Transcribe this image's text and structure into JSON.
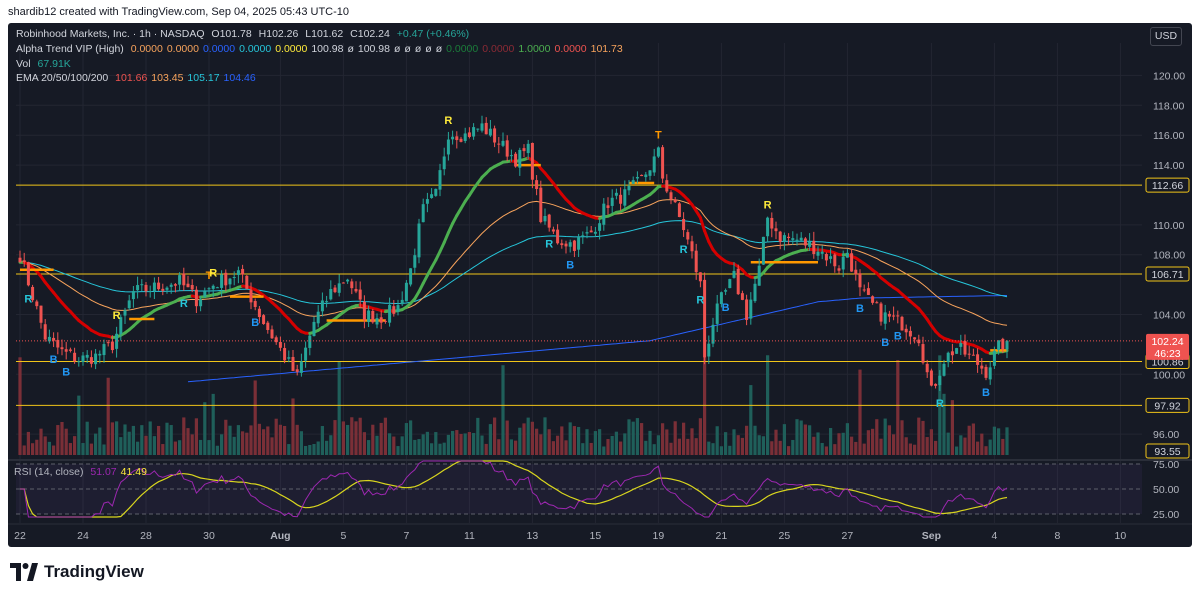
{
  "header": {
    "text": "shardib12 created with TradingView.com, Sep 04, 2025 05:43 UTC-10"
  },
  "legend": {
    "symbol": "Robinhood Markets, Inc. · 1h · NASDAQ",
    "ohlc": [
      "O101.78",
      "H102.26",
      "L101.62",
      "C102.24",
      "+0.47 (+0.46%)"
    ],
    "alpha_trend": {
      "label": "Alpha Trend VIP (High)",
      "values": [
        {
          "text": "0.0000",
          "color": "#f7a35c"
        },
        {
          "text": "0.0000",
          "color": "#f7a35c"
        },
        {
          "text": "0.0000",
          "color": "#2962ff"
        },
        {
          "text": "0.0000",
          "color": "#26c6da"
        },
        {
          "text": "0.0000",
          "color": "#ffeb3b"
        },
        {
          "text": "100.98",
          "color": "#d1d4dc"
        },
        {
          "text": "ø",
          "color": "#d1d4dc"
        },
        {
          "text": "100.98",
          "color": "#d1d4dc"
        },
        {
          "text": "ø",
          "color": "#d1d4dc"
        },
        {
          "text": "ø",
          "color": "#d1d4dc"
        },
        {
          "text": "ø",
          "color": "#d1d4dc"
        },
        {
          "text": "ø",
          "color": "#d1d4dc"
        },
        {
          "text": "ø",
          "color": "#d1d4dc"
        },
        {
          "text": "0.0000",
          "color": "#1b7d3a"
        },
        {
          "text": "0.0000",
          "color": "#8b2a35"
        },
        {
          "text": "1.0000",
          "color": "#4caf50"
        },
        {
          "text": "0.0000",
          "color": "#ef5350"
        },
        {
          "text": "101.73",
          "color": "#f7a35c"
        }
      ]
    },
    "vol": {
      "label": "Vol",
      "value": "67.91K"
    },
    "ema": {
      "label": "EMA 20/50/100/200",
      "values": [
        {
          "text": "101.66",
          "color": "#ef5350"
        },
        {
          "text": "103.45",
          "color": "#f7a35c"
        },
        {
          "text": "105.17",
          "color": "#26c6da"
        },
        {
          "text": "104.46",
          "color": "#2962ff"
        }
      ]
    },
    "currency": "USD"
  },
  "rsi_legend": {
    "label": "RSI (14, close)",
    "values": [
      {
        "text": "51.07",
        "color": "#9c27b0"
      },
      {
        "text": "41.49",
        "color": "#ffeb3b"
      }
    ]
  },
  "footer": {
    "brand": "TradingView"
  },
  "chart_data": [
    {
      "type": "candlestick",
      "title": "Robinhood Markets, Inc. · 1h · NASDAQ",
      "ylim": [
        94.6,
        121.5
      ],
      "y_ticks": [
        "120.00",
        "118.00",
        "116.00",
        "114.00",
        "110.00",
        "108.00",
        "104.00",
        "100.00",
        "96.00"
      ],
      "x_ticks": [
        {
          "label": "22",
          "i": 0
        },
        {
          "label": "24",
          "i": 15
        },
        {
          "label": "28",
          "i": 30
        },
        {
          "label": "30",
          "i": 45
        },
        {
          "label": "Aug",
          "i": 62
        },
        {
          "label": "5",
          "i": 77
        },
        {
          "label": "7",
          "i": 92
        },
        {
          "label": "11",
          "i": 107
        },
        {
          "label": "13",
          "i": 122
        },
        {
          "label": "15",
          "i": 137
        },
        {
          "label": "19",
          "i": 152
        },
        {
          "label": "21",
          "i": 167
        },
        {
          "label": "25",
          "i": 182
        },
        {
          "label": "27",
          "i": 197
        },
        {
          "label": "Sep",
          "i": 217
        },
        {
          "label": "4",
          "i": 232
        },
        {
          "label": "8",
          "i": 247
        },
        {
          "label": "10",
          "i": 262
        }
      ],
      "key_points": [
        [
          0,
          108.0
        ],
        [
          6,
          102.5
        ],
        [
          10,
          101.5
        ],
        [
          14,
          101.0
        ],
        [
          18,
          101.2
        ],
        [
          22,
          102.0
        ],
        [
          27,
          105.5
        ],
        [
          32,
          105.8
        ],
        [
          38,
          106.2
        ],
        [
          42,
          105.0
        ],
        [
          46,
          106.0
        ],
        [
          52,
          106.8
        ],
        [
          58,
          103.5
        ],
        [
          63,
          101.2
        ],
        [
          66,
          99.8
        ],
        [
          70,
          103.5
        ],
        [
          74,
          105.5
        ],
        [
          78,
          106.5
        ],
        [
          82,
          104.0
        ],
        [
          86,
          103.8
        ],
        [
          90,
          104.5
        ],
        [
          93,
          107.0
        ],
        [
          96,
          111.0
        ],
        [
          99,
          112.0
        ],
        [
          102,
          116.2
        ],
        [
          106,
          116.0
        ],
        [
          110,
          116.6
        ],
        [
          114,
          115.5
        ],
        [
          118,
          114.4
        ],
        [
          121,
          115.0
        ],
        [
          124,
          110.5
        ],
        [
          128,
          109.0
        ],
        [
          132,
          108.7
        ],
        [
          136,
          109.5
        ],
        [
          140,
          111.5
        ],
        [
          144,
          112.0
        ],
        [
          148,
          113.0
        ],
        [
          152,
          114.8
        ],
        [
          153,
          113.2
        ],
        [
          155,
          111.8
        ],
        [
          158,
          109.8
        ],
        [
          160,
          108.0
        ],
        [
          162,
          106.0
        ],
        [
          163,
          101.2
        ],
        [
          165,
          103.5
        ],
        [
          167,
          105.0
        ],
        [
          170,
          106.5
        ],
        [
          173,
          104.0
        ],
        [
          176,
          107.0
        ],
        [
          178,
          110.5
        ],
        [
          181,
          109.2
        ],
        [
          185,
          109.0
        ],
        [
          190,
          108.4
        ],
        [
          195,
          107.2
        ],
        [
          197,
          108.2
        ],
        [
          200,
          105.5
        ],
        [
          205,
          104.0
        ],
        [
          210,
          103.4
        ],
        [
          214,
          102.5
        ],
        [
          217,
          98.8
        ],
        [
          220,
          101.0
        ],
        [
          223,
          101.8
        ],
        [
          227,
          101.0
        ],
        [
          230,
          100.2
        ],
        [
          233,
          101.8
        ],
        [
          235,
          102.24
        ]
      ],
      "levels": [
        {
          "value": 112.66,
          "label": "112.66"
        },
        {
          "value": 106.71,
          "label": "106.71"
        },
        {
          "value": 100.86,
          "label": "100.86"
        },
        {
          "value": 97.92,
          "label": "97.92"
        },
        {
          "value": 93.55,
          "label": "93.55"
        }
      ],
      "last_price": {
        "value": 102.24,
        "label": "102.24",
        "countdown": "46:23"
      },
      "signals": [
        {
          "i": 2,
          "letter": "R",
          "pos": "below"
        },
        {
          "i": 8,
          "letter": "B",
          "pos": "below"
        },
        {
          "i": 11,
          "letter": "B",
          "pos": "below"
        },
        {
          "i": 23,
          "letter": "R",
          "pos": "above"
        },
        {
          "i": 39,
          "letter": "R",
          "pos": "below"
        },
        {
          "i": 45,
          "letter": "T",
          "pos": "above"
        },
        {
          "i": 46,
          "letter": "R",
          "pos": "above"
        },
        {
          "i": 56,
          "letter": "B",
          "pos": "below"
        },
        {
          "i": 102,
          "letter": "R",
          "pos": "above"
        },
        {
          "i": 126,
          "letter": "R",
          "pos": "below"
        },
        {
          "i": 131,
          "letter": "B",
          "pos": "below"
        },
        {
          "i": 152,
          "letter": "T",
          "pos": "above"
        },
        {
          "i": 158,
          "letter": "R",
          "pos": "below"
        },
        {
          "i": 162,
          "letter": "R",
          "pos": "below"
        },
        {
          "i": 168,
          "letter": "B",
          "pos": "below"
        },
        {
          "i": 178,
          "letter": "R",
          "pos": "above"
        },
        {
          "i": 200,
          "letter": "B",
          "pos": "below"
        },
        {
          "i": 206,
          "letter": "B",
          "pos": "below"
        },
        {
          "i": 209,
          "letter": "B",
          "pos": "below"
        },
        {
          "i": 219,
          "letter": "R",
          "pos": "below"
        },
        {
          "i": 230,
          "letter": "B",
          "pos": "below"
        }
      ],
      "colors": {
        "up": "#26a69a",
        "down": "#ef5350",
        "ema20": "#ef5350",
        "ema50": "#f7a35c",
        "ema100": "#26c6da",
        "ema200": "#2962ff",
        "trend_up": "#4caf50",
        "trend_down": "#d50000",
        "level": "#f0c419",
        "flat_segment": "#ff9800"
      }
    },
    {
      "type": "line",
      "title": "RSI (14, close)",
      "ylim": [
        20,
        80
      ],
      "y_ticks": [
        "75.00",
        "50.00",
        "25.00"
      ],
      "series": [
        {
          "name": "RSI",
          "color": "#9c27b0"
        },
        {
          "name": "RSI MA",
          "color": "#d9d61e"
        }
      ],
      "last_values": [
        51.07,
        41.49
      ]
    }
  ]
}
